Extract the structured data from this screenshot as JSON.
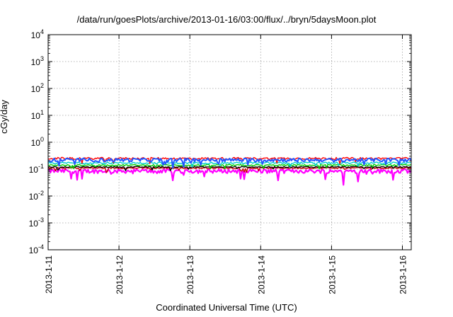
{
  "chart_data": {
    "type": "line",
    "title": "/data/run/goesPlots/archive/2013-01-16/03:00/flux/../bryn/5daysMoon.plot",
    "xlabel": "Coordinated Universal Time (UTC)",
    "ylabel": "cGy/day",
    "x_ticks": [
      "2013-1-11",
      "2013-1-12",
      "2013-1-13",
      "2013-1-14",
      "2013-1-15",
      "2013-1-16"
    ],
    "xlim": [
      "2013-01-11",
      "2013-01-16 03:00"
    ],
    "yscale": "log",
    "ylim": [
      0.0001,
      10000
    ],
    "y_ticks": [
      {
        "base": "10",
        "exp": "-4",
        "value": 0.0001
      },
      {
        "base": "10",
        "exp": "-3",
        "value": 0.001
      },
      {
        "base": "10",
        "exp": "-2",
        "value": 0.01
      },
      {
        "base": "10",
        "exp": "-1",
        "value": 0.1
      },
      {
        "base": "10",
        "exp": "0",
        "value": 1
      },
      {
        "base": "10",
        "exp": "1",
        "value": 10
      },
      {
        "base": "10",
        "exp": "2",
        "value": 100
      },
      {
        "base": "10",
        "exp": "3",
        "value": 1000
      },
      {
        "base": "10",
        "exp": "4",
        "value": 10000
      }
    ],
    "grid": true,
    "series": [
      {
        "color": "#ff00ff",
        "base": 0.085,
        "noise": 0.35,
        "dip": 0.3
      },
      {
        "color": "#cc0000",
        "base": 0.11,
        "noise": 0.12,
        "dip": 0.3
      },
      {
        "color": "#000000",
        "base": 0.12,
        "noise": 0.1,
        "dip": 0.3
      },
      {
        "color": "#00cc00",
        "base": 0.14,
        "noise": 0.12,
        "dip": 0.3
      },
      {
        "color": "#00cccc",
        "base": 0.17,
        "noise": 0.15,
        "dip": 0.3
      },
      {
        "color": "#ff0000",
        "base": 0.25,
        "noise": 0.18,
        "dip": 0.4
      },
      {
        "color": "#2255ff",
        "base": 0.22,
        "noise": 0.3,
        "dip": 0.5
      }
    ]
  }
}
